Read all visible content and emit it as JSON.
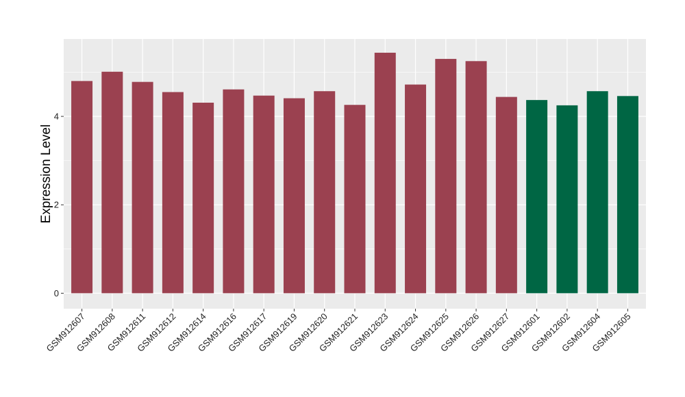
{
  "chart_data": {
    "type": "bar",
    "title": "",
    "xlabel": "",
    "ylabel": "Expression Level",
    "ylim": [
      -0.35,
      5.75
    ],
    "yticks": [
      0,
      2,
      4
    ],
    "grid": true,
    "legend": "none",
    "categories": [
      "GSM912607",
      "GSM912608",
      "GSM912611",
      "GSM912612",
      "GSM912614",
      "GSM912616",
      "GSM912617",
      "GSM912619",
      "GSM912620",
      "GSM912621",
      "GSM912623",
      "GSM912624",
      "GSM912625",
      "GSM912626",
      "GSM912627",
      "GSM912601",
      "GSM912602",
      "GSM912604",
      "GSM912605"
    ],
    "values": [
      4.8,
      5.01,
      4.78,
      4.55,
      4.31,
      4.61,
      4.47,
      4.41,
      4.57,
      4.26,
      5.44,
      4.72,
      5.3,
      5.25,
      4.44,
      4.37,
      4.25,
      4.57,
      4.46
    ],
    "groups": [
      "A",
      "A",
      "A",
      "A",
      "A",
      "A",
      "A",
      "A",
      "A",
      "A",
      "A",
      "A",
      "A",
      "A",
      "A",
      "B",
      "B",
      "B",
      "B"
    ],
    "colors": {
      "A": "#9b4150",
      "B": "#006644"
    },
    "panel_background": "#ebebeb",
    "grid_color": "#ffffff"
  }
}
